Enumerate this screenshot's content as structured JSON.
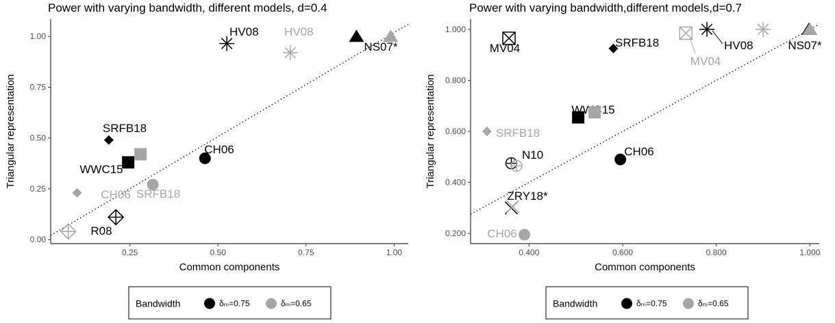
{
  "chart_data": [
    {
      "type": "scatter",
      "title": "Power with varying bandwidth, different models, d=0.4",
      "xlabel": "Common components",
      "ylabel": "Triangular representation",
      "xlim": [
        0.025,
        1.04
      ],
      "ylim": [
        -0.02,
        1.085
      ],
      "xticks": [
        "0.25",
        "0.50",
        "0.75",
        "1.00"
      ],
      "xtick_values": [
        0.25,
        0.5,
        0.75,
        1.0
      ],
      "yticks": [
        "0.00",
        "0.25",
        "0.50",
        "0.75",
        "1.00"
      ],
      "ytick_values": [
        0,
        0.25,
        0.5,
        0.75,
        1.0
      ],
      "grid": false,
      "reference_line": {
        "style": "dotted",
        "from": [
          0.025,
          0.02
        ],
        "to": [
          1.04,
          1.06
        ]
      },
      "series": [
        {
          "name": "δm=0.75",
          "color": "#000000",
          "points": [
            {
              "label": "HV08",
              "model": "HV08",
              "x": 0.525,
              "y": 0.965
            },
            {
              "label": "NS07*",
              "model": "NS07",
              "x": 0.893,
              "y": 1.0
            },
            {
              "label": "SRFB18",
              "model": "SRFB18",
              "x": 0.19,
              "y": 0.49
            },
            {
              "label": "WWC15",
              "model": "WWC15",
              "x": 0.245,
              "y": 0.38
            },
            {
              "label": "CH06",
              "model": "CH06",
              "x": 0.463,
              "y": 0.4
            },
            {
              "label": "R08",
              "model": "R08",
              "x": 0.21,
              "y": 0.11
            }
          ]
        },
        {
          "name": "δm=0.65",
          "color": "#a6a6a6",
          "points": [
            {
              "label": "HV08",
              "model": "HV08",
              "x": 0.705,
              "y": 0.92
            },
            {
              "label": "",
              "model": "NS07",
              "x": 0.99,
              "y": 1.0
            },
            {
              "label": "",
              "model": "WWC15",
              "x": 0.28,
              "y": 0.42
            },
            {
              "label": "SRFB18",
              "model": "SRFB18",
              "x": 0.1,
              "y": 0.23
            },
            {
              "label": "CH06",
              "model": "CH06",
              "x": 0.315,
              "y": 0.27
            },
            {
              "label": "",
              "model": "R08",
              "x": 0.075,
              "y": 0.04
            }
          ]
        }
      ]
    },
    {
      "type": "scatter",
      "title": "Power with varying bandwidth,different models,d=0.7",
      "xlabel": "Common components",
      "ylabel": "Triangular representation",
      "xlim": [
        0.275,
        1.02
      ],
      "ylim": [
        0.16,
        1.04
      ],
      "xticks": [
        "0.400",
        "0.600",
        "0.800",
        "1.000"
      ],
      "xtick_values": [
        0.4,
        0.6,
        0.8,
        1.0
      ],
      "yticks": [
        "0.200",
        "0.400",
        "0.600",
        "0.800",
        "1.000"
      ],
      "ytick_values": [
        0.2,
        0.4,
        0.6,
        0.8,
        1.0
      ],
      "grid": false,
      "reference_line": {
        "style": "dotted",
        "from": [
          0.275,
          0.275
        ],
        "to": [
          1.02,
          1.02
        ]
      },
      "series": [
        {
          "name": "δm=0.75",
          "color": "#000000",
          "points": [
            {
              "label": "MV04",
              "model": "MV04",
              "x": 0.357,
              "y": 0.965
            },
            {
              "label": "SRFB18",
              "model": "SRFB18",
              "x": 0.58,
              "y": 0.925
            },
            {
              "label": "HV08",
              "model": "HV08",
              "x": 0.78,
              "y": 1.0
            },
            {
              "label": "NS07*",
              "model": "NS07",
              "x": 0.998,
              "y": 1.0
            },
            {
              "label": "WWC15",
              "model": "WWC15",
              "x": 0.505,
              "y": 0.655
            },
            {
              "label": "CH06",
              "model": "CH06",
              "x": 0.595,
              "y": 0.49
            },
            {
              "label": "N10",
              "model": "N10",
              "x": 0.362,
              "y": 0.475
            },
            {
              "label": "ZRY18*",
              "model": "ZRY18",
              "x": 0.362,
              "y": 0.3
            }
          ]
        },
        {
          "name": "δm=0.65",
          "color": "#a6a6a6",
          "points": [
            {
              "label": "MV04",
              "model": "MV04",
              "x": 0.735,
              "y": 0.985
            },
            {
              "label": "",
              "model": "HV08",
              "x": 0.9,
              "y": 1.0
            },
            {
              "label": "",
              "model": "NS07",
              "x": 1.0,
              "y": 1.0
            },
            {
              "label": "",
              "model": "WWC15",
              "x": 0.54,
              "y": 0.675
            },
            {
              "label": "SRFB18",
              "model": "SRFB18",
              "x": 0.31,
              "y": 0.6
            },
            {
              "label": "",
              "model": "N10",
              "x": 0.373,
              "y": 0.465
            },
            {
              "label": "",
              "model": "ZRY18",
              "x": 0.365,
              "y": 0.305
            },
            {
              "label": "CH06",
              "model": "CH06",
              "x": 0.39,
              "y": 0.195
            }
          ]
        }
      ]
    }
  ],
  "legend": {
    "title": "Bandwidth",
    "items": [
      {
        "label": "δₘ=0.75",
        "color": "#000000"
      },
      {
        "label": "δₘ=0.65",
        "color": "#a6a6a6"
      }
    ]
  }
}
